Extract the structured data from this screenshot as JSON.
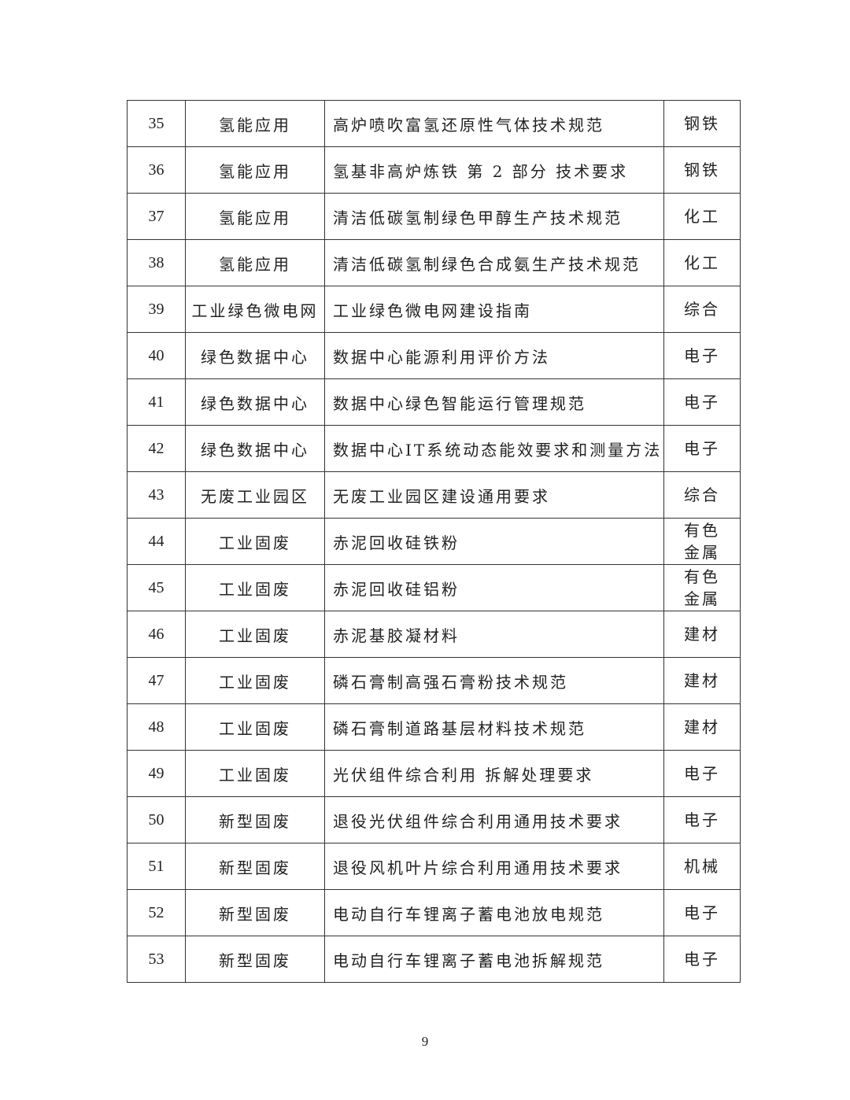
{
  "rows": [
    {
      "no": "35",
      "category": "氢能应用",
      "title": "高炉喷吹富氢还原性气体技术规范",
      "industry": "钢铁"
    },
    {
      "no": "36",
      "category": "氢能应用",
      "title": "氢基非高炉炼铁 第 2 部分 技术要求",
      "industry": "钢铁"
    },
    {
      "no": "37",
      "category": "氢能应用",
      "title": "清洁低碳氢制绿色甲醇生产技术规范",
      "industry": "化工"
    },
    {
      "no": "38",
      "category": "氢能应用",
      "title": "清洁低碳氢制绿色合成氨生产技术规范",
      "industry": "化工"
    },
    {
      "no": "39",
      "category": "工业绿色微电网",
      "title": "工业绿色微电网建设指南",
      "industry": "综合"
    },
    {
      "no": "40",
      "category": "绿色数据中心",
      "title": "数据中心能源利用评价方法",
      "industry": "电子"
    },
    {
      "no": "41",
      "category": "绿色数据中心",
      "title": "数据中心绿色智能运行管理规范",
      "industry": "电子"
    },
    {
      "no": "42",
      "category": "绿色数据中心",
      "title": "数据中心IT系统动态能效要求和测量方法",
      "industry": "电子"
    },
    {
      "no": "43",
      "category": "无废工业园区",
      "title": "无废工业园区建设通用要求",
      "industry": "综合"
    },
    {
      "no": "44",
      "category": "工业固废",
      "title": "赤泥回收硅铁粉",
      "industry": "有色金属"
    },
    {
      "no": "45",
      "category": "工业固废",
      "title": "赤泥回收硅铝粉",
      "industry": "有色金属"
    },
    {
      "no": "46",
      "category": "工业固废",
      "title": "赤泥基胶凝材料",
      "industry": "建材"
    },
    {
      "no": "47",
      "category": "工业固废",
      "title": "磷石膏制高强石膏粉技术规范",
      "industry": "建材"
    },
    {
      "no": "48",
      "category": "工业固废",
      "title": "磷石膏制道路基层材料技术规范",
      "industry": "建材"
    },
    {
      "no": "49",
      "category": "工业固废",
      "title": "光伏组件综合利用 拆解处理要求",
      "industry": "电子"
    },
    {
      "no": "50",
      "category": "新型固废",
      "title": "退役光伏组件综合利用通用技术要求",
      "industry": "电子"
    },
    {
      "no": "51",
      "category": "新型固废",
      "title": "退役风机叶片综合利用通用技术要求",
      "industry": "机械"
    },
    {
      "no": "52",
      "category": "新型固废",
      "title": "电动自行车锂离子蓄电池放电规范",
      "industry": "电子"
    },
    {
      "no": "53",
      "category": "新型固废",
      "title": "电动自行车锂离子蓄电池拆解规范",
      "industry": "电子"
    }
  ],
  "page_number": "9"
}
